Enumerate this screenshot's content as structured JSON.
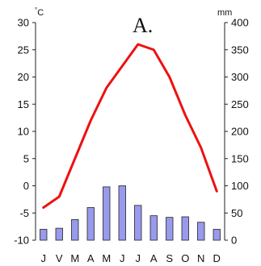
{
  "chart_data": {
    "type": "bar+line",
    "title": "A.",
    "months": [
      "J",
      "V",
      "M",
      "A",
      "M",
      "J",
      "J",
      "A",
      "S",
      "O",
      "N",
      "D"
    ],
    "temperature": {
      "unit": "°C",
      "values": [
        -4,
        -2,
        5,
        12,
        18,
        22,
        26,
        25,
        20,
        13,
        7,
        -1
      ],
      "ylim": [
        -10,
        30
      ],
      "ticks": [
        -10,
        -5,
        0,
        5,
        10,
        15,
        20,
        25,
        30
      ],
      "color": "#ee1111"
    },
    "precipitation": {
      "unit": "mm",
      "values": [
        20,
        22,
        38,
        60,
        98,
        100,
        64,
        45,
        42,
        43,
        33,
        20
      ],
      "ylim": [
        0,
        400
      ],
      "ticks": [
        0,
        50,
        100,
        150,
        200,
        250,
        300,
        350,
        400
      ],
      "color": "#9999ee"
    },
    "grid": false
  }
}
